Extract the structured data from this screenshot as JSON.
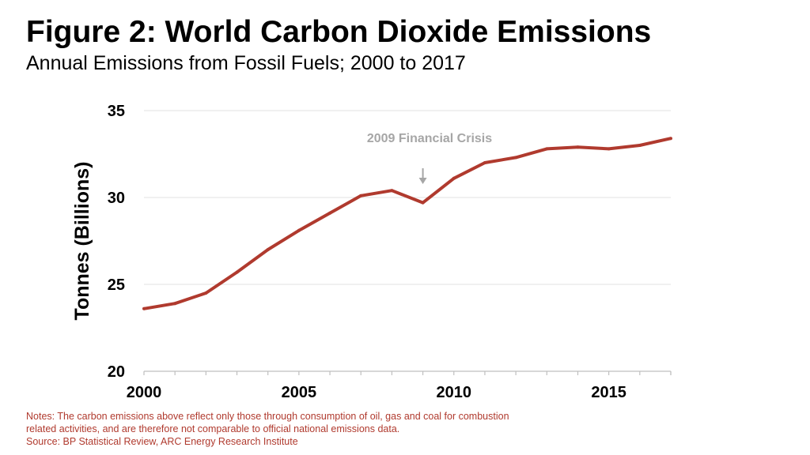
{
  "header": {
    "title": "Figure 2: World Carbon Dioxide Emissions",
    "subtitle": "Annual Emissions from Fossil Fuels; 2000 to 2017"
  },
  "notes": {
    "line1": "Notes: The carbon emissions above reflect only those through consumption of oil, gas and coal for combustion",
    "line2": "related activities, and are therefore not comparable to official national emissions data.",
    "line3": "Source: BP Statistical Review, ARC Energy Research Institute"
  },
  "colors": {
    "line": "#b03a2e",
    "notes": "#b03a2e",
    "annotation": "#a6a6a6",
    "gridline": "#e0e0e0",
    "axis": "#bfbfbf"
  },
  "chart_data": {
    "type": "line",
    "title": "Figure 2: World Carbon Dioxide Emissions",
    "subtitle": "Annual Emissions from Fossil Fuels; 2000 to 2017",
    "xlabel": "",
    "ylabel": "Tonnes (Billions)",
    "xlim": [
      2000,
      2017
    ],
    "ylim": [
      20,
      35
    ],
    "x_ticks": [
      2000,
      2005,
      2010,
      2015
    ],
    "y_ticks": [
      20,
      25,
      30,
      35
    ],
    "grid": "horizontal",
    "legend": "none",
    "x": [
      2000,
      2001,
      2002,
      2003,
      2004,
      2005,
      2006,
      2007,
      2008,
      2009,
      2010,
      2011,
      2012,
      2013,
      2014,
      2015,
      2016,
      2017
    ],
    "series": [
      {
        "values": [
          23.6,
          23.9,
          24.5,
          25.7,
          27.0,
          28.1,
          29.1,
          30.1,
          30.4,
          29.7,
          31.1,
          32.0,
          32.3,
          32.8,
          32.9,
          32.8,
          33.0,
          33.4
        ]
      }
    ],
    "annotations": [
      {
        "x": 2009,
        "text": "2009 Financial Crisis"
      }
    ]
  }
}
